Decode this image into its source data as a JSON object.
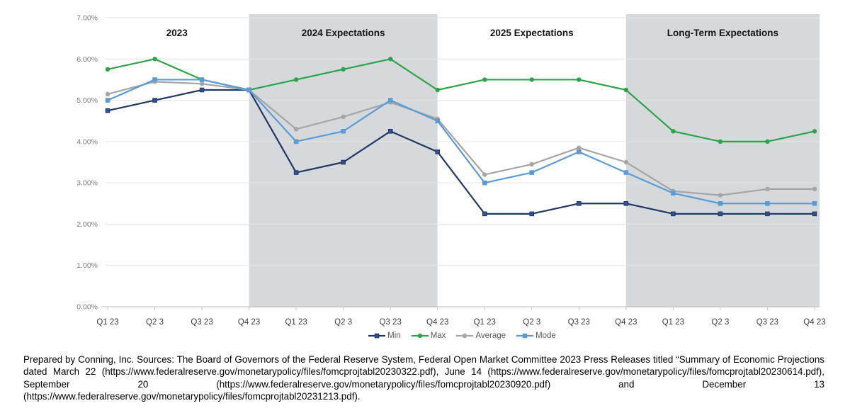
{
  "page": {
    "background": "#FFFFFF"
  },
  "footer": {
    "text": "Prepared by Conning, Inc. Sources: The Board of Governors of the Federal Reserve System, Federal Open Market Committee 2023 Press Releases titled “Summary of Economic Projections dated March 22 (https://www.federalreserve.gov/monetarypolicy/files/fomcprojtabl20230322.pdf), June 14 (https://www.federalreserve.gov/monetarypolicy/files/fomcprojtabl20230614.pdf), September 20 (https://www.federalreserve.gov/monetarypolicy/files/fomcprojtabl20230920.pdf) and December 13 (https://www.federalreserve.gov/monetarypolicy/files/fomcprojtabl20231213.pdf)."
  },
  "chart_data": {
    "type": "line",
    "title": "",
    "sections": [
      {
        "label": "2023",
        "start": 0,
        "end": 3,
        "shaded": false
      },
      {
        "label": "2024 Expectations",
        "start": 3,
        "end": 7,
        "shaded": true
      },
      {
        "label": "2025 Expectations",
        "start": 7,
        "end": 11,
        "shaded": false
      },
      {
        "label": "Long-Term Expectations",
        "start": 11,
        "end": 15,
        "shaded": true
      }
    ],
    "categories": [
      "Q1 23",
      "Q2 3",
      "Q3 23",
      "Q4 23",
      "Q1 23",
      "Q2 3",
      "Q3 23",
      "Q4 23",
      "Q1 23",
      "Q2 3",
      "Q3 23",
      "Q4 23",
      "Q1 23",
      "Q2 3",
      "Q3 23",
      "Q4 23"
    ],
    "series": [
      {
        "name": "Min",
        "color": "#203864",
        "marker": "square",
        "marker_fill": "#2E5395",
        "values": [
          4.75,
          5.0,
          5.25,
          5.25,
          3.25,
          3.5,
          4.25,
          3.75,
          2.25,
          2.25,
          2.5,
          2.5,
          2.25,
          2.25,
          2.25,
          2.25
        ]
      },
      {
        "name": "Max",
        "color": "#2DA349",
        "marker": "circle",
        "marker_fill": "#2DA349",
        "values": [
          5.75,
          6.0,
          5.5,
          5.25,
          5.5,
          5.75,
          6.0,
          5.25,
          5.5,
          5.5,
          5.5,
          5.25,
          4.25,
          4.0,
          4.0,
          4.25
        ]
      },
      {
        "name": "Average",
        "color": "#A5A5A5",
        "marker": "circle",
        "marker_fill": "#A5A5A5",
        "values": [
          5.15,
          5.45,
          5.4,
          5.25,
          4.3,
          4.6,
          4.95,
          4.55,
          3.2,
          3.45,
          3.85,
          3.5,
          2.8,
          2.7,
          2.85,
          2.85
        ]
      },
      {
        "name": "Mode",
        "color": "#5B9BD5",
        "marker": "square",
        "marker_fill": "#5B9BD5",
        "values": [
          5.0,
          5.5,
          5.5,
          5.25,
          4.0,
          4.25,
          5.0,
          4.5,
          3.0,
          3.25,
          3.75,
          3.25,
          2.75,
          2.5,
          2.5,
          2.5
        ]
      }
    ],
    "y_axis": {
      "min": 0,
      "max": 7,
      "step": 1,
      "tick_labels": [
        "0.00%",
        "1.00%",
        "2.00%",
        "3.00%",
        "4.00%",
        "5.00%",
        "6.00%",
        "7.00%"
      ]
    },
    "legend_position": "bottom-center",
    "grid": true,
    "colors": {
      "band": "#D6D9DC",
      "grid": "#E4E5E6",
      "axis": "#C8C8C8",
      "section_label": "#141414",
      "x_label": "#3C3C3C",
      "y_label": "#7B7B7B"
    }
  }
}
